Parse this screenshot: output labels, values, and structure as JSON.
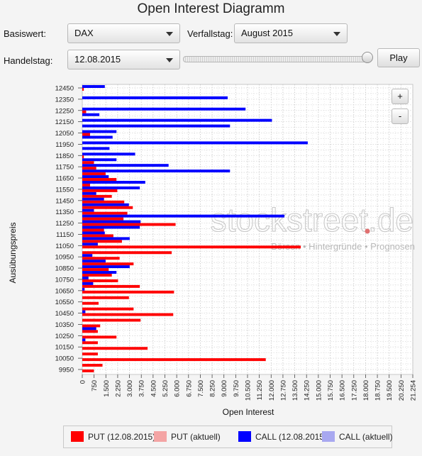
{
  "window": {
    "title": "Open Interest Diagramm"
  },
  "controls": {
    "basiswert_label": "Basiswert:",
    "basiswert_value": "DAX",
    "verfallstag_label": "Verfallstag:",
    "verfallstag_value": "August 2015",
    "handelstag_label": "Handelstag:",
    "handelstag_value": "12.08.2015",
    "play_label": "Play",
    "zoom_in_label": "+",
    "zoom_out_label": "-",
    "slider_position": 1.0
  },
  "watermark": {
    "brand": "stockstreet.de",
    "tagline": "Börsen • Hintergründe • Prognosen"
  },
  "colors": {
    "put": "#ff0000",
    "put_current": "#f4a4a4",
    "call": "#0000ff",
    "call_current": "#a8a8f0"
  },
  "chart_data": {
    "type": "bar",
    "orientation": "horizontal",
    "title": "",
    "xlabel": "Open Interest",
    "ylabel": "Ausübungspreis",
    "xlim": [
      0,
      21254
    ],
    "x_ticks": [
      "0",
      "750",
      "1.500",
      "2.250",
      "3.000",
      "3.750",
      "4.500",
      "5.250",
      "6.000",
      "6.750",
      "7.500",
      "8.250",
      "9.000",
      "9.750",
      "10.500",
      "11.250",
      "12.000",
      "12.750",
      "13.500",
      "14.250",
      "15.000",
      "15.750",
      "16.500",
      "17.250",
      "18.000",
      "18.750",
      "19.500",
      "20.250",
      "21.254"
    ],
    "y_tick_labels": [
      "12450",
      "12350",
      "12250",
      "12150",
      "12050",
      "11950",
      "11850",
      "11750",
      "11650",
      "11550",
      "11450",
      "11350",
      "11250",
      "11150",
      "11050",
      "10950",
      "10850",
      "10750",
      "10650",
      "10550",
      "10450",
      "10350",
      "10250",
      "10150",
      "10050",
      "9950"
    ],
    "grid": true,
    "legend_position": "bottom",
    "strikes": [
      12450,
      12400,
      12350,
      12300,
      12250,
      12200,
      12150,
      12100,
      12050,
      12000,
      11950,
      11900,
      11850,
      11800,
      11750,
      11700,
      11650,
      11600,
      11550,
      11500,
      11450,
      11400,
      11350,
      11300,
      11250,
      11200,
      11150,
      11100,
      11050,
      11000,
      10950,
      10900,
      10850,
      10800,
      10750,
      10700,
      10650,
      10600,
      10550,
      10500,
      10450,
      10400,
      10350,
      10300,
      10250,
      10200,
      10150,
      10100,
      10050,
      10000,
      9950
    ],
    "series": [
      {
        "name": "PUT (12.08.2015)",
        "values": [
          100,
          0,
          0,
          0,
          250,
          0,
          0,
          0,
          500,
          0,
          0,
          0,
          100,
          750,
          900,
          1500,
          2200,
          500,
          2250,
          1900,
          2700,
          3250,
          2900,
          2650,
          6000,
          1400,
          2000,
          2550,
          14050,
          5750,
          2400,
          3300,
          1700,
          1900,
          2300,
          3700,
          5900,
          3000,
          1050,
          3300,
          5850,
          3750,
          1150,
          1000,
          2200,
          1000,
          4200,
          1000,
          11800,
          1300,
          750
        ]
      },
      {
        "name": "PUT (aktuell)",
        "values": []
      },
      {
        "name": "CALL (12.08.2015)",
        "values": [
          1450,
          0,
          9350,
          0,
          10500,
          1100,
          12200,
          9500,
          2200,
          1950,
          14500,
          1750,
          3400,
          2200,
          5550,
          9500,
          1700,
          4050,
          3700,
          900,
          1400,
          3000,
          750,
          13000,
          3750,
          3700,
          1450,
          3050,
          1000,
          0,
          650,
          1500,
          3050,
          2200,
          400,
          700,
          150,
          0,
          0,
          0,
          200,
          0,
          0,
          900,
          0,
          200,
          0,
          0,
          0,
          0,
          0
        ]
      },
      {
        "name": "CALL (aktuell)",
        "values": []
      }
    ]
  },
  "legend": [
    {
      "label": "PUT (12.08.2015)",
      "color": "#ff0000"
    },
    {
      "label": "PUT (aktuell)",
      "color": "#f4a4a4"
    },
    {
      "label": "CALL (12.08.2015)",
      "color": "#0000ff"
    },
    {
      "label": "CALL (aktuell)",
      "color": "#a8a8f0"
    }
  ]
}
